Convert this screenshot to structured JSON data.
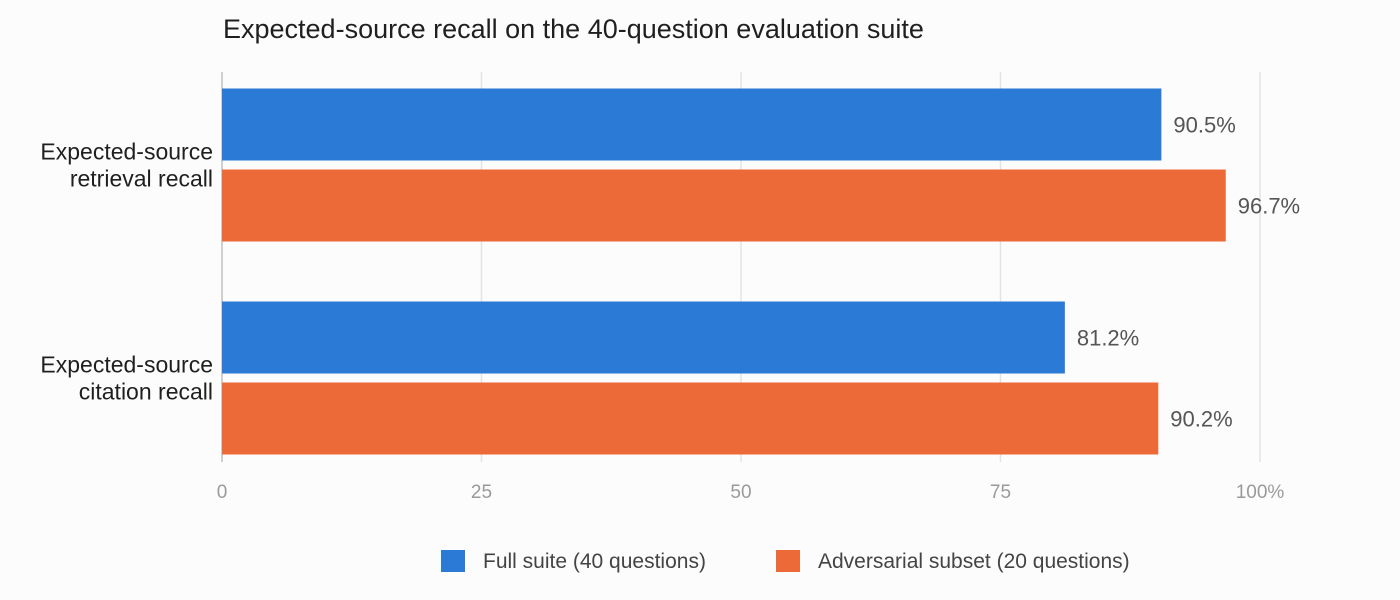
{
  "chart_data": {
    "type": "bar",
    "orientation": "horizontal",
    "title": "Expected-source recall on the 40-question evaluation suite",
    "categories": [
      [
        "Expected-source",
        "retrieval recall"
      ],
      [
        "Expected-source",
        "citation recall"
      ]
    ],
    "series": [
      {
        "name": "Full suite (40 questions)",
        "color": "#2a7ad6",
        "values": [
          90.5,
          81.2
        ],
        "labels": [
          "90.5%",
          "81.2%"
        ]
      },
      {
        "name": "Adversarial subset (20 questions)",
        "color": "#eb6a37",
        "values": [
          96.7,
          90.2
        ],
        "labels": [
          "96.7%",
          "90.2%"
        ]
      }
    ],
    "xlim": [
      0,
      100
    ],
    "x_ticks": [
      0,
      25,
      50,
      75,
      100
    ],
    "x_tick_labels": [
      "0",
      "25",
      "50",
      "75",
      "100%"
    ],
    "grid": true,
    "legend_position": "bottom"
  }
}
